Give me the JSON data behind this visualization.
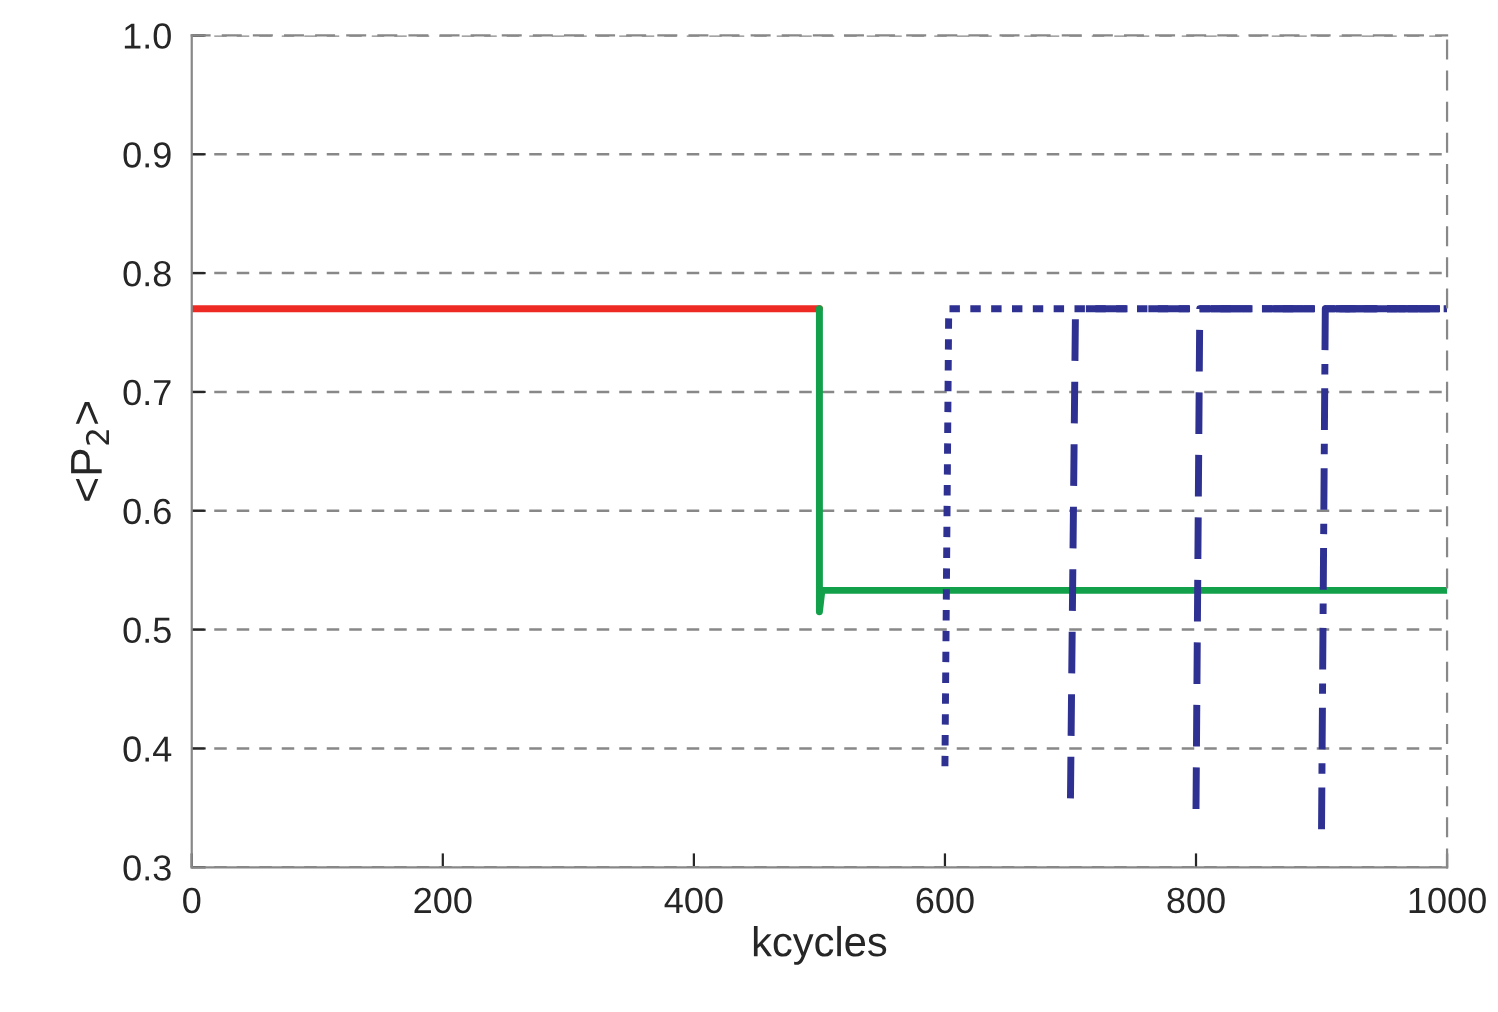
{
  "chart_data": {
    "type": "line",
    "xlabel": "kcycles",
    "ylabel": "<P$_{2}$>",
    "xlim": [
      0,
      1000
    ],
    "ylim": [
      0.3,
      1.0
    ],
    "xticks": [
      0,
      200,
      400,
      600,
      800,
      1000
    ],
    "yticks": [
      {
        "value": 0.3,
        "label": "0.3"
      },
      {
        "value": 0.4,
        "label": "0.4"
      },
      {
        "value": 0.5,
        "label": "0.5"
      },
      {
        "value": 0.6,
        "label": "0.6"
      },
      {
        "value": 0.7,
        "label": "0.7"
      },
      {
        "value": 0.8,
        "label": "0.8"
      },
      {
        "value": 0.9,
        "label": "0.9"
      },
      {
        "value": 1.0,
        "label": "1.0"
      }
    ],
    "grid": "y",
    "marker": "none",
    "series": [
      {
        "color": "#ee2a24",
        "line_style": "solid",
        "x": [
          0,
          500
        ],
        "values": [
          0.77,
          0.77
        ]
      },
      {
        "color": "#12a04a",
        "line_style": "solid",
        "x": [
          500,
          500,
          502,
          1000
        ],
        "values": [
          0.77,
          0.515,
          0.533,
          0.533
        ]
      },
      {
        "color": "#2e3192",
        "line_style": "dotted",
        "x": [
          600,
          603,
          1000
        ],
        "values": [
          0.385,
          0.77,
          0.77
        ]
      },
      {
        "color": "#2e3192",
        "line_style": "dashed",
        "x": [
          700,
          704,
          1000
        ],
        "values": [
          0.358,
          0.77,
          0.77
        ]
      },
      {
        "color": "#2e3192",
        "line_style": "dashed",
        "x": [
          800,
          803,
          1000
        ],
        "values": [
          0.349,
          0.77,
          0.77
        ]
      },
      {
        "color": "#2e3192",
        "line_style": "dashdot",
        "x": [
          900,
          903,
          1000
        ],
        "values": [
          0.332,
          0.77,
          0.77
        ]
      }
    ]
  }
}
